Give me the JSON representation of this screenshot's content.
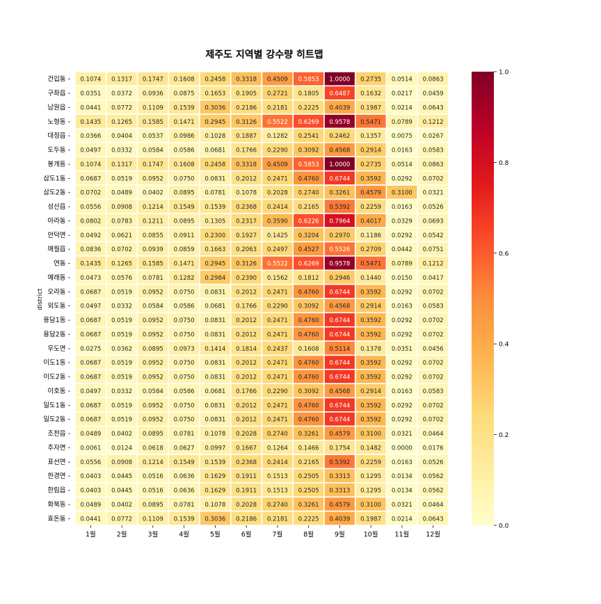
{
  "chart_data": {
    "type": "heatmap",
    "title": "제주도 지역별 강수량 히트맵",
    "xlabel": "",
    "ylabel": "district",
    "x": [
      "1월",
      "2월",
      "3월",
      "4월",
      "5월",
      "6월",
      "7월",
      "8월",
      "9월",
      "10월",
      "11월",
      "12월"
    ],
    "y": [
      "건입동",
      "구좌읍",
      "남원읍",
      "노형동",
      "대정읍",
      "도두동",
      "봉개동",
      "삼도1동",
      "삼도2동",
      "성산읍",
      "아라동",
      "안덕면",
      "애월읍",
      "연동",
      "예래동",
      "오라동",
      "외도동",
      "용담1동",
      "용담2동",
      "우도면",
      "이도1동",
      "이도2동",
      "이호동",
      "일도1동",
      "일도2동",
      "조천읍",
      "추자면",
      "표선면",
      "한경면",
      "한림읍",
      "화북동",
      "효돈동"
    ],
    "values": [
      [
        0.1074,
        0.1317,
        0.1747,
        0.1608,
        0.2458,
        0.3318,
        0.4509,
        0.5853,
        1.0,
        0.2735,
        0.0514,
        0.0863
      ],
      [
        0.0351,
        0.0372,
        0.0936,
        0.0875,
        0.1653,
        0.1905,
        0.2721,
        0.1805,
        0.6487,
        0.1632,
        0.0217,
        0.0459
      ],
      [
        0.0441,
        0.0772,
        0.1109,
        0.1539,
        0.3036,
        0.2186,
        0.2181,
        0.2225,
        0.4039,
        0.1987,
        0.0214,
        0.0643
      ],
      [
        0.1435,
        0.1265,
        0.1585,
        0.1471,
        0.2945,
        0.3126,
        0.5522,
        0.6269,
        0.9578,
        0.5471,
        0.0789,
        0.1212
      ],
      [
        0.0366,
        0.0404,
        0.0537,
        0.0986,
        0.1028,
        0.1887,
        0.1282,
        0.2541,
        0.2462,
        0.1357,
        0.0075,
        0.0267
      ],
      [
        0.0497,
        0.0332,
        0.0584,
        0.0586,
        0.0681,
        0.1766,
        0.229,
        0.3092,
        0.4568,
        0.2914,
        0.0163,
        0.0583
      ],
      [
        0.1074,
        0.1317,
        0.1747,
        0.1608,
        0.2458,
        0.3318,
        0.4509,
        0.5853,
        1.0,
        0.2735,
        0.0514,
        0.0863
      ],
      [
        0.0687,
        0.0519,
        0.0952,
        0.075,
        0.0831,
        0.2012,
        0.2471,
        0.476,
        0.6744,
        0.3592,
        0.0292,
        0.0702
      ],
      [
        0.0702,
        0.0489,
        0.0402,
        0.0895,
        0.0781,
        0.1078,
        0.2028,
        0.274,
        0.3261,
        0.4579,
        0.31,
        0.0321
      ],
      [
        0.0556,
        0.0908,
        0.1214,
        0.1549,
        0.1539,
        0.2368,
        0.2414,
        0.2165,
        0.5392,
        0.2259,
        0.0163,
        0.0526
      ],
      [
        0.0802,
        0.0783,
        0.1211,
        0.0895,
        0.1305,
        0.2317,
        0.359,
        0.6226,
        0.7964,
        0.4017,
        0.0329,
        0.0693
      ],
      [
        0.0492,
        0.0621,
        0.0855,
        0.0911,
        0.23,
        0.1927,
        0.1425,
        0.3204,
        0.297,
        0.1186,
        0.0292,
        0.0542
      ],
      [
        0.0836,
        0.0702,
        0.0939,
        0.0859,
        0.1663,
        0.2063,
        0.2497,
        0.4527,
        0.5526,
        0.2709,
        0.0442,
        0.0751
      ],
      [
        0.1435,
        0.1265,
        0.1585,
        0.1471,
        0.2945,
        0.3126,
        0.5522,
        0.6269,
        0.9578,
        0.5471,
        0.0789,
        0.1212
      ],
      [
        0.0473,
        0.0576,
        0.0781,
        0.1282,
        0.2984,
        0.239,
        0.1562,
        0.1812,
        0.2946,
        0.144,
        0.015,
        0.0417
      ],
      [
        0.0687,
        0.0519,
        0.0952,
        0.075,
        0.0831,
        0.2012,
        0.2471,
        0.476,
        0.6744,
        0.3592,
        0.0292,
        0.0702
      ],
      [
        0.0497,
        0.0332,
        0.0584,
        0.0586,
        0.0681,
        0.1766,
        0.229,
        0.3092,
        0.4568,
        0.2914,
        0.0163,
        0.0583
      ],
      [
        0.0687,
        0.0519,
        0.0952,
        0.075,
        0.0831,
        0.2012,
        0.2471,
        0.476,
        0.6744,
        0.3592,
        0.0292,
        0.0702
      ],
      [
        0.0687,
        0.0519,
        0.0952,
        0.075,
        0.0831,
        0.2012,
        0.2471,
        0.476,
        0.6744,
        0.3592,
        0.0292,
        0.0702
      ],
      [
        0.0275,
        0.0362,
        0.0895,
        0.0973,
        0.1414,
        0.1814,
        0.2437,
        0.1608,
        0.5114,
        0.1378,
        0.0351,
        0.0456
      ],
      [
        0.0687,
        0.0519,
        0.0952,
        0.075,
        0.0831,
        0.2012,
        0.2471,
        0.476,
        0.6744,
        0.3592,
        0.0292,
        0.0702
      ],
      [
        0.0687,
        0.0519,
        0.0952,
        0.075,
        0.0831,
        0.2012,
        0.2471,
        0.476,
        0.6744,
        0.3592,
        0.0292,
        0.0702
      ],
      [
        0.0497,
        0.0332,
        0.0584,
        0.0586,
        0.0681,
        0.1766,
        0.229,
        0.3092,
        0.4568,
        0.2914,
        0.0163,
        0.0583
      ],
      [
        0.0687,
        0.0519,
        0.0952,
        0.075,
        0.0831,
        0.2012,
        0.2471,
        0.476,
        0.6744,
        0.3592,
        0.0292,
        0.0702
      ],
      [
        0.0687,
        0.0519,
        0.0952,
        0.075,
        0.0831,
        0.2012,
        0.2471,
        0.476,
        0.6744,
        0.3592,
        0.0292,
        0.0702
      ],
      [
        0.0489,
        0.0402,
        0.0895,
        0.0781,
        0.1078,
        0.2028,
        0.274,
        0.3261,
        0.4579,
        0.31,
        0.0321,
        0.0464
      ],
      [
        0.0061,
        0.0124,
        0.0618,
        0.0627,
        0.0997,
        0.1667,
        0.1264,
        0.1466,
        0.1754,
        0.1482,
        0.0,
        0.0176
      ],
      [
        0.0556,
        0.0908,
        0.1214,
        0.1549,
        0.1539,
        0.2368,
        0.2414,
        0.2165,
        0.5392,
        0.2259,
        0.0163,
        0.0526
      ],
      [
        0.0403,
        0.0445,
        0.0516,
        0.0636,
        0.1629,
        0.1911,
        0.1513,
        0.2505,
        0.3313,
        0.1295,
        0.0134,
        0.0562
      ],
      [
        0.0403,
        0.0445,
        0.0516,
        0.0636,
        0.1629,
        0.1911,
        0.1513,
        0.2505,
        0.3313,
        0.1295,
        0.0134,
        0.0562
      ],
      [
        0.0489,
        0.0402,
        0.0895,
        0.0781,
        0.1078,
        0.2028,
        0.274,
        0.3261,
        0.4579,
        0.31,
        0.0321,
        0.0464
      ],
      [
        0.0441,
        0.0772,
        0.1109,
        0.1539,
        0.3036,
        0.2186,
        0.2181,
        0.2225,
        0.4039,
        0.1987,
        0.0214,
        0.0643
      ]
    ],
    "value_format": "4 decimals",
    "colormap": "YlOrRd",
    "colorbar": {
      "min": 0.0,
      "max": 1.0,
      "ticks": [
        "0.0",
        "0.2",
        "0.4",
        "0.6",
        "0.8",
        "1.0"
      ]
    },
    "grid": false,
    "legend": "colorbar right"
  }
}
